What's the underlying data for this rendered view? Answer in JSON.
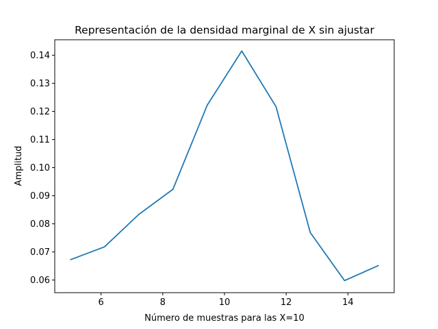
{
  "chart_data": {
    "type": "line",
    "title": "Representación de la densidad marginal de X sin ajustar",
    "xlabel": "Número de muestras para las X=10",
    "ylabel": "Amplitud",
    "xlim": [
      4.5,
      15.5
    ],
    "ylim": [
      0.0555,
      0.1455
    ],
    "x_ticks": [
      6,
      8,
      10,
      12,
      14
    ],
    "y_ticks": [
      0.06,
      0.07,
      0.08,
      0.09,
      0.1,
      0.11,
      0.12,
      0.13,
      0.14
    ],
    "x_tick_labels": [
      "6",
      "8",
      "10",
      "12",
      "14"
    ],
    "y_tick_labels": [
      "0.06",
      "0.07",
      "0.08",
      "0.09",
      "0.10",
      "0.11",
      "0.12",
      "0.13",
      "0.14"
    ],
    "grid": false,
    "series": [
      {
        "color": "#1f77b4",
        "x": [
          5.0,
          6.11,
          7.22,
          8.33,
          9.44,
          10.56,
          11.67,
          12.78,
          13.89,
          15.0
        ],
        "values": [
          0.0672,
          0.0718,
          0.0833,
          0.0923,
          0.1222,
          0.1415,
          0.1217,
          0.0769,
          0.0598,
          0.0652
        ]
      }
    ]
  }
}
